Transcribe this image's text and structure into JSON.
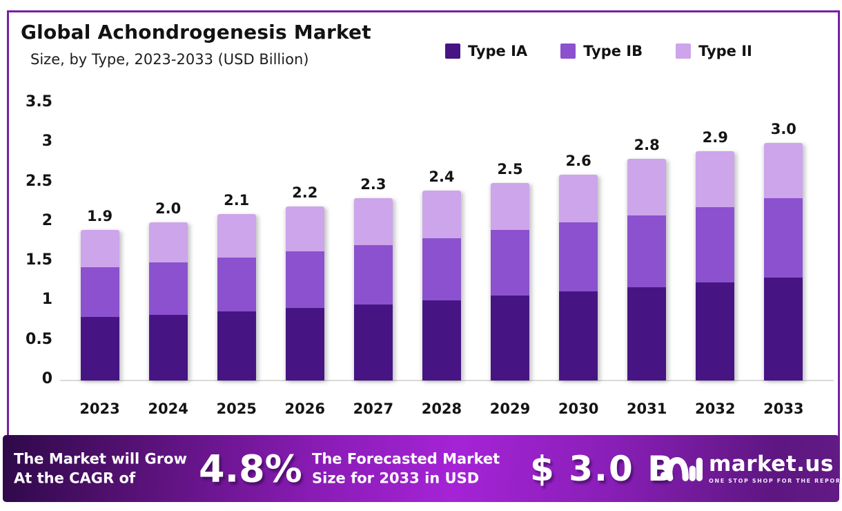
{
  "header": {
    "title": "Global Achondrogenesis Market",
    "subtitle": "Size, by Type, 2023-2033 (USD Billion)"
  },
  "chart_data": {
    "type": "bar",
    "stacked": true,
    "title": "Global Achondrogenesis Market",
    "subtitle": "Size, by Type, 2023-2033 (USD Billion)",
    "unit": "USD Billion",
    "categories": [
      "2023",
      "2024",
      "2025",
      "2026",
      "2027",
      "2028",
      "2029",
      "2030",
      "2031",
      "2032",
      "2033"
    ],
    "series": [
      {
        "name": "Type IA",
        "color": "#461583",
        "values": [
          0.8,
          0.83,
          0.87,
          0.92,
          0.96,
          1.01,
          1.07,
          1.13,
          1.18,
          1.24,
          1.3
        ]
      },
      {
        "name": "Type IB",
        "color": "#8b51ce",
        "values": [
          0.63,
          0.66,
          0.68,
          0.71,
          0.75,
          0.79,
          0.83,
          0.87,
          0.91,
          0.95,
          1.0
        ]
      },
      {
        "name": "Type II",
        "color": "#cda5ea",
        "values": [
          0.47,
          0.51,
          0.55,
          0.57,
          0.59,
          0.6,
          0.6,
          0.6,
          0.71,
          0.71,
          0.7
        ]
      }
    ],
    "totals": [
      1.9,
      2.0,
      2.1,
      2.2,
      2.3,
      2.4,
      2.5,
      2.6,
      2.8,
      2.9,
      3.0
    ],
    "yticks": [
      "3.5",
      "3",
      "2.5",
      "2",
      "1.5",
      "1",
      "0.5",
      "0"
    ],
    "ylim": [
      0,
      3.5
    ],
    "grid": false,
    "legend_position": "top-right"
  },
  "footer": {
    "grow_line1": "The Market will Grow",
    "grow_line2": "At the CAGR of",
    "cagr_value": "4.8%",
    "forecast_line1": "The Forecasted Market",
    "forecast_line2": "Size for 2033 in USD",
    "forecast_value": "$ 3.0 B",
    "brand": {
      "name": "market.us",
      "tagline": "ONE STOP SHOP FOR THE REPORTS"
    }
  },
  "colors": {
    "frame_border": "#7a1fa2",
    "axis_line": "#dadada",
    "banner_dark": "#2e0949",
    "banner_bright": "#a523d6",
    "text": "#141414"
  }
}
